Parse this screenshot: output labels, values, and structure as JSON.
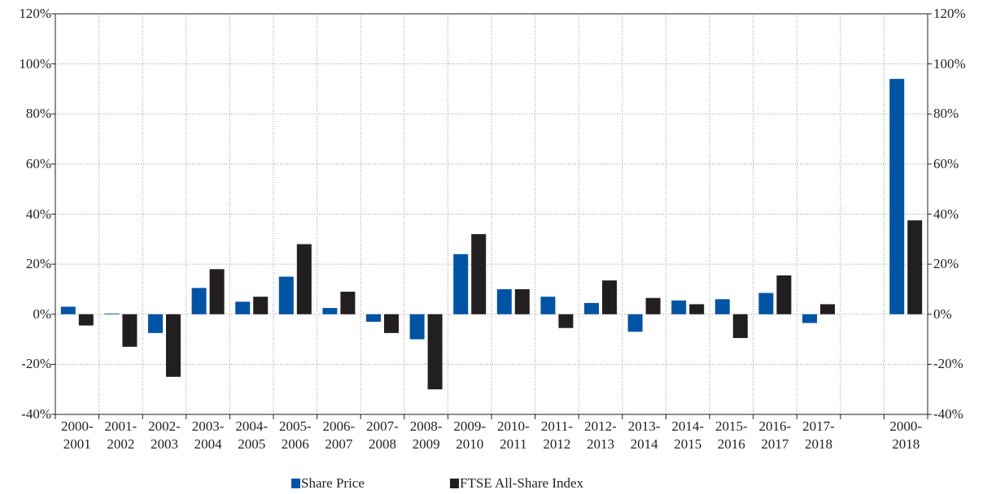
{
  "chart_data": {
    "type": "bar",
    "categories": [
      "2000-2001",
      "2001-2002",
      "2002-2003",
      "2003-2004",
      "2004-2005",
      "2005-2006",
      "2006-2007",
      "2007-2008",
      "2008-2009",
      "2009-2010",
      "2010-2011",
      "2011-2012",
      "2012-2013",
      "2013-2014",
      "2014-2015",
      "2015-2016",
      "2016-2017",
      "2017-2018",
      null,
      "2000-2018"
    ],
    "series": [
      {
        "name": "Share Price",
        "color": "#0054a6",
        "values": [
          3,
          0.3,
          -7.5,
          10.5,
          5,
          15,
          2.5,
          -3,
          -10,
          24,
          10,
          7,
          4.5,
          -7,
          5.5,
          6,
          8.5,
          -3.5,
          null,
          94
        ]
      },
      {
        "name": "FTSE All-Share Index",
        "color": "#231f20",
        "values": [
          -4.5,
          -13,
          -25,
          18,
          7,
          28,
          9,
          -7.5,
          -30,
          32,
          10,
          -5.5,
          13.5,
          6.5,
          4,
          -9.5,
          15.5,
          4,
          null,
          37.5
        ]
      }
    ],
    "ylim": [
      -40,
      120
    ],
    "yticks": [
      {
        "value": -40,
        "label": "-40%"
      },
      {
        "value": -20,
        "label": "-20%"
      },
      {
        "value": 0,
        "label": "0%"
      },
      {
        "value": 20,
        "label": "20%"
      },
      {
        "value": 40,
        "label": "40%"
      },
      {
        "value": 60,
        "label": "60%"
      },
      {
        "value": 80,
        "label": "80%"
      },
      {
        "value": 100,
        "label": "100%"
      },
      {
        "value": 120,
        "label": "120%"
      }
    ],
    "y2lim": [
      -40,
      120
    ],
    "y2ticks": [
      {
        "value": -40,
        "label": "-40%"
      },
      {
        "value": -20,
        "label": "-20%"
      },
      {
        "value": 0,
        "label": "0%"
      },
      {
        "value": 20,
        "label": "20%"
      },
      {
        "value": 40,
        "label": "40%"
      },
      {
        "value": 60,
        "label": "60%"
      },
      {
        "value": 80,
        "label": "80%"
      },
      {
        "value": 100,
        "label": "100%"
      },
      {
        "value": 120,
        "label": "120%"
      }
    ],
    "grid": true,
    "legend": "bottom"
  }
}
